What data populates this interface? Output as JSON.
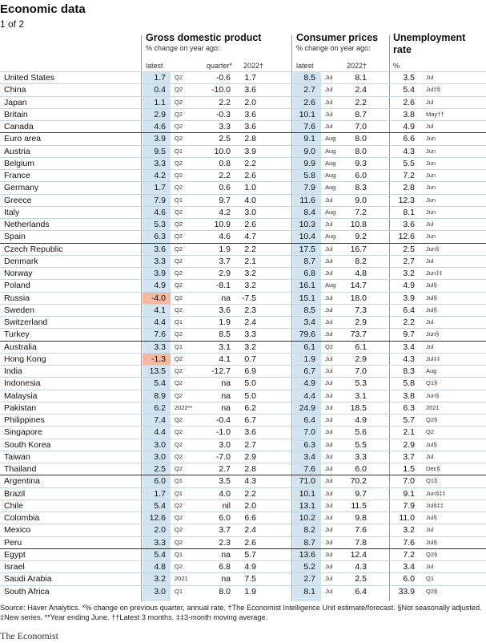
{
  "title": "Economic data",
  "subtitle": "1 of 2",
  "headers": {
    "gdp": {
      "title": "Gross domestic product",
      "sub": "% change on year ago:",
      "latest": "latest",
      "quarter": "quarter*",
      "year": "2022†"
    },
    "cpi": {
      "title": "Consumer prices",
      "sub": "% change on year ago:",
      "latest": "latest",
      "year": "2022†"
    },
    "unemp": {
      "title": "Unemployment",
      "title2": "rate",
      "sub": "%"
    }
  },
  "rows": [
    {
      "country": "United States",
      "gdp": "1.7",
      "gdp_p": "Q2",
      "q": "-0.6",
      "g22": "1.7",
      "cpi": "8.5",
      "cpi_p": "Jul",
      "c22": "8.1",
      "u": "3.5",
      "u_p": "Jul"
    },
    {
      "country": "China",
      "gdp": "0.4",
      "gdp_p": "Q2",
      "q": "-10.0",
      "g22": "3.6",
      "cpi": "2.7",
      "cpi_p": "Jul",
      "c22": "2.4",
      "u": "5.4",
      "u_p": "Jul‡§"
    },
    {
      "country": "Japan",
      "gdp": "1.1",
      "gdp_p": "Q2",
      "q": "2.2",
      "g22": "2.0",
      "cpi": "2.6",
      "cpi_p": "Jul",
      "c22": "2.2",
      "u": "2.6",
      "u_p": "Jul"
    },
    {
      "country": "Britain",
      "gdp": "2.9",
      "gdp_p": "Q2",
      "q": "-0.3",
      "g22": "3.6",
      "cpi": "10.1",
      "cpi_p": "Jul",
      "c22": "8.7",
      "u": "3.8",
      "u_p": "May††"
    },
    {
      "country": "Canada",
      "gdp": "4.6",
      "gdp_p": "Q2",
      "q": "3.3",
      "g22": "3.6",
      "cpi": "7.6",
      "cpi_p": "Jul",
      "c22": "7.0",
      "u": "4.9",
      "u_p": "Jul"
    },
    {
      "country": "Euro area",
      "gdp": "3.9",
      "gdp_p": "Q2",
      "q": "2.5",
      "g22": "2.8",
      "cpi": "9.1",
      "cpi_p": "Aug",
      "c22": "8.0",
      "u": "6.6",
      "u_p": "Jun",
      "group": true
    },
    {
      "country": "Austria",
      "gdp": "9.5",
      "gdp_p": "Q1",
      "q": "10.0",
      "g22": "3.9",
      "cpi": "9.0",
      "cpi_p": "Aug",
      "c22": "8.0",
      "u": "4.3",
      "u_p": "Jun"
    },
    {
      "country": "Belgium",
      "gdp": "3.3",
      "gdp_p": "Q2",
      "q": "0.8",
      "g22": "2.2",
      "cpi": "9.9",
      "cpi_p": "Aug",
      "c22": "9.3",
      "u": "5.5",
      "u_p": "Jun"
    },
    {
      "country": "France",
      "gdp": "4.2",
      "gdp_p": "Q2",
      "q": "2.2",
      "g22": "2.6",
      "cpi": "5.8",
      "cpi_p": "Aug",
      "c22": "6.0",
      "u": "7.2",
      "u_p": "Jun"
    },
    {
      "country": "Germany",
      "gdp": "1.7",
      "gdp_p": "Q2",
      "q": "0.6",
      "g22": "1.0",
      "cpi": "7.9",
      "cpi_p": "Aug",
      "c22": "8.3",
      "u": "2.8",
      "u_p": "Jun"
    },
    {
      "country": "Greece",
      "gdp": "7.9",
      "gdp_p": "Q1",
      "q": "9.7",
      "g22": "4.0",
      "cpi": "11.6",
      "cpi_p": "Jul",
      "c22": "9.0",
      "u": "12.3",
      "u_p": "Jun"
    },
    {
      "country": "Italy",
      "gdp": "4.6",
      "gdp_p": "Q2",
      "q": "4.2",
      "g22": "3.0",
      "cpi": "8.4",
      "cpi_p": "Aug",
      "c22": "7.2",
      "u": "8.1",
      "u_p": "Jun"
    },
    {
      "country": "Netherlands",
      "gdp": "5.3",
      "gdp_p": "Q2",
      "q": "10.9",
      "g22": "2.6",
      "cpi": "10.3",
      "cpi_p": "Jul",
      "c22": "10.8",
      "u": "3.6",
      "u_p": "Jul"
    },
    {
      "country": "Spain",
      "gdp": "6.3",
      "gdp_p": "Q2",
      "q": "4.6",
      "g22": "4.7",
      "cpi": "10.4",
      "cpi_p": "Aug",
      "c22": "9.2",
      "u": "12.6",
      "u_p": "Jun"
    },
    {
      "country": "Czech Republic",
      "gdp": "3.6",
      "gdp_p": "Q2",
      "q": "1.9",
      "g22": "2.2",
      "cpi": "17.5",
      "cpi_p": "Jul",
      "c22": "16.7",
      "u": "2.5",
      "u_p": "Jun§",
      "group": true
    },
    {
      "country": "Denmark",
      "gdp": "3.3",
      "gdp_p": "Q2",
      "q": "3.7",
      "g22": "2.1",
      "cpi": "8.7",
      "cpi_p": "Jul",
      "c22": "8.2",
      "u": "2.7",
      "u_p": "Jul"
    },
    {
      "country": "Norway",
      "gdp": "3.9",
      "gdp_p": "Q2",
      "q": "2.9",
      "g22": "3.2",
      "cpi": "6.8",
      "cpi_p": "Jul",
      "c22": "4.8",
      "u": "3.2",
      "u_p": "Jun‡‡"
    },
    {
      "country": "Poland",
      "gdp": "4.9",
      "gdp_p": "Q2",
      "q": "-8.1",
      "g22": "3.2",
      "cpi": "16.1",
      "cpi_p": "Aug",
      "c22": "14.7",
      "u": "4.9",
      "u_p": "Jul§"
    },
    {
      "country": "Russia",
      "gdp": "-4.0",
      "gdp_p": "Q2",
      "q": "na",
      "g22": "-7.5",
      "cpi": "15.1",
      "cpi_p": "Jul",
      "c22": "18.0",
      "u": "3.9",
      "u_p": "Jul§",
      "neg": true
    },
    {
      "country": "Sweden",
      "gdp": "4.1",
      "gdp_p": "Q2",
      "q": "3.6",
      "g22": "2.3",
      "cpi": "8.5",
      "cpi_p": "Jul",
      "c22": "7.3",
      "u": "6.4",
      "u_p": "Jul§"
    },
    {
      "country": "Switzerland",
      "gdp": "4.4",
      "gdp_p": "Q1",
      "q": "1.9",
      "g22": "2.4",
      "cpi": "3.4",
      "cpi_p": "Jul",
      "c22": "2.9",
      "u": "2.2",
      "u_p": "Jul"
    },
    {
      "country": "Turkey",
      "gdp": "7.6",
      "gdp_p": "Q2",
      "q": "8.5",
      "g22": "3.3",
      "cpi": "79.6",
      "cpi_p": "Jul",
      "c22": "73.7",
      "u": "9.7",
      "u_p": "Jun§"
    },
    {
      "country": "Australia",
      "gdp": "3.3",
      "gdp_p": "Q1",
      "q": "3.1",
      "g22": "3.2",
      "cpi": "6.1",
      "cpi_p": "Q2",
      "c22": "6.1",
      "u": "3.4",
      "u_p": "Jul",
      "group": true
    },
    {
      "country": "Hong Kong",
      "gdp": "-1.3",
      "gdp_p": "Q2",
      "q": "4.1",
      "g22": "0.7",
      "cpi": "1.9",
      "cpi_p": "Jul",
      "c22": "2.9",
      "u": "4.3",
      "u_p": "Jul‡‡",
      "neg": true
    },
    {
      "country": "India",
      "gdp": "13.5",
      "gdp_p": "Q2",
      "q": "-12.7",
      "g22": "6.9",
      "cpi": "6.7",
      "cpi_p": "Jul",
      "c22": "7.0",
      "u": "8.3",
      "u_p": "Aug"
    },
    {
      "country": "Indonesia",
      "gdp": "5.4",
      "gdp_p": "Q2",
      "q": "na",
      "g22": "5.0",
      "cpi": "4.9",
      "cpi_p": "Jul",
      "c22": "5.3",
      "u": "5.8",
      "u_p": "Q1§"
    },
    {
      "country": "Malaysia",
      "gdp": "8.9",
      "gdp_p": "Q2",
      "q": "na",
      "g22": "5.0",
      "cpi": "4.4",
      "cpi_p": "Jul",
      "c22": "3.1",
      "u": "3.8",
      "u_p": "Jun§"
    },
    {
      "country": "Pakistan",
      "gdp": "6.2",
      "gdp_p": "2022**",
      "q": "na",
      "g22": "6.2",
      "cpi": "24.9",
      "cpi_p": "Jul",
      "c22": "18.5",
      "u": "6.3",
      "u_p": "2021"
    },
    {
      "country": "Philippines",
      "gdp": "7.4",
      "gdp_p": "Q2",
      "q": "-0.4",
      "g22": "6.7",
      "cpi": "6.4",
      "cpi_p": "Jul",
      "c22": "4.9",
      "u": "5.7",
      "u_p": "Q2§"
    },
    {
      "country": "Singapore",
      "gdp": "4.4",
      "gdp_p": "Q2",
      "q": "-1.0",
      "g22": "3.6",
      "cpi": "7.0",
      "cpi_p": "Jul",
      "c22": "5.6",
      "u": "2.1",
      "u_p": "Q2"
    },
    {
      "country": "South Korea",
      "gdp": "3.0",
      "gdp_p": "Q2",
      "q": "3.0",
      "g22": "2.7",
      "cpi": "6.3",
      "cpi_p": "Jul",
      "c22": "5.5",
      "u": "2.9",
      "u_p": "Jul§"
    },
    {
      "country": "Taiwan",
      "gdp": "3.0",
      "gdp_p": "Q2",
      "q": "-7.0",
      "g22": "2.9",
      "cpi": "3.4",
      "cpi_p": "Jul",
      "c22": "3.3",
      "u": "3.7",
      "u_p": "Jul"
    },
    {
      "country": "Thailand",
      "gdp": "2.5",
      "gdp_p": "Q2",
      "q": "2.7",
      "g22": "2.8",
      "cpi": "7.6",
      "cpi_p": "Jul",
      "c22": "6.0",
      "u": "1.5",
      "u_p": "Dec§"
    },
    {
      "country": "Argentina",
      "gdp": "6.0",
      "gdp_p": "Q1",
      "q": "3.5",
      "g22": "4.3",
      "cpi": "71.0",
      "cpi_p": "Jul",
      "c22": "70.2",
      "u": "7.0",
      "u_p": "Q1§",
      "group": true
    },
    {
      "country": "Brazil",
      "gdp": "1.7",
      "gdp_p": "Q1",
      "q": "4.0",
      "g22": "2.2",
      "cpi": "10.1",
      "cpi_p": "Jul",
      "c22": "9.7",
      "u": "9.1",
      "u_p": "Jun§‡‡"
    },
    {
      "country": "Chile",
      "gdp": "5.4",
      "gdp_p": "Q2",
      "q": "nil",
      "g22": "2.0",
      "cpi": "13.1",
      "cpi_p": "Jul",
      "c22": "11.5",
      "u": "7.9",
      "u_p": "Jul§‡‡"
    },
    {
      "country": "Colombia",
      "gdp": "12.6",
      "gdp_p": "Q2",
      "q": "6.0",
      "g22": "6.6",
      "cpi": "10.2",
      "cpi_p": "Jul",
      "c22": "9.8",
      "u": "11.0",
      "u_p": "Jul§"
    },
    {
      "country": "Mexico",
      "gdp": "2.0",
      "gdp_p": "Q2",
      "q": "3.7",
      "g22": "2.4",
      "cpi": "8.2",
      "cpi_p": "Jul",
      "c22": "7.6",
      "u": "3.2",
      "u_p": "Jul"
    },
    {
      "country": "Peru",
      "gdp": "3.3",
      "gdp_p": "Q2",
      "q": "2.3",
      "g22": "2.6",
      "cpi": "8.7",
      "cpi_p": "Jul",
      "c22": "7.8",
      "u": "7.6",
      "u_p": "Jul§"
    },
    {
      "country": "Egypt",
      "gdp": "5.4",
      "gdp_p": "Q1",
      "q": "na",
      "g22": "5.7",
      "cpi": "13.6",
      "cpi_p": "Jul",
      "c22": "12.4",
      "u": "7.2",
      "u_p": "Q2§",
      "group": true
    },
    {
      "country": "Israel",
      "gdp": "4.8",
      "gdp_p": "Q2",
      "q": "6.8",
      "g22": "4.9",
      "cpi": "5.2",
      "cpi_p": "Jul",
      "c22": "4.3",
      "u": "3.4",
      "u_p": "Jul"
    },
    {
      "country": "Saudi Arabia",
      "gdp": "3.2",
      "gdp_p": "2021",
      "q": "na",
      "g22": "7.5",
      "cpi": "2.7",
      "cpi_p": "Jul",
      "c22": "2.5",
      "u": "6.0",
      "u_p": "Q1"
    },
    {
      "country": "South Africa",
      "gdp": "3.0",
      "gdp_p": "Q1",
      "q": "8.0",
      "g22": "1.9",
      "cpi": "8.1",
      "cpi_p": "Jul",
      "c22": "6.4",
      "u": "33.9",
      "u_p": "Q2§"
    }
  ],
  "footnote": "Source: Haver Analytics.  *% change on previous quarter, annual rate. †The Economist Intelligence Unit estimate/forecast. §Not seasonally adjusted. ‡New series. **Year ending June. ††Latest 3 months. ‡‡3-month moving average.",
  "brand": "The Economist",
  "colors": {
    "shade": "#d1e4f0",
    "negative": "#f4b9a0"
  }
}
